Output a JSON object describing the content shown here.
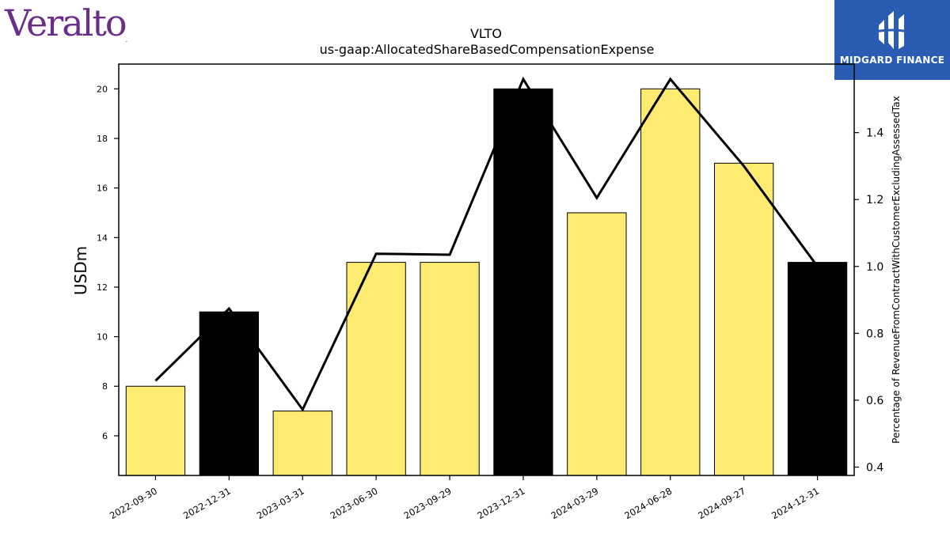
{
  "brand": {
    "logo_text": "Veralto",
    "logo_tm": "."
  },
  "publisher": {
    "name": "MIDGARD FINANCE"
  },
  "chart_data": {
    "type": "bar",
    "title": "VLTO",
    "subtitle": "us-gaap:AllocatedShareBasedCompensationExpense",
    "ylabel": "USDm",
    "y2label": "Percentage of RevenueFromContractWithCustomerExcludingAssessedTax",
    "categories": [
      "2022-09-30",
      "2022-12-31",
      "2023-03-31",
      "2023-06-30",
      "2023-09-29",
      "2023-12-31",
      "2024-03-29",
      "2024-06-28",
      "2024-09-27",
      "2024-12-31"
    ],
    "values": [
      8,
      11,
      7,
      13,
      13,
      20,
      15,
      20,
      17,
      13
    ],
    "bar_colors": [
      "#fdeb72",
      "#000000",
      "#fdeb72",
      "#fdeb72",
      "#fdeb72",
      "#000000",
      "#fdeb72",
      "#fdeb72",
      "#fdeb72",
      "#000000"
    ],
    "ylim": [
      4.4,
      21.0
    ],
    "yticks": [
      6,
      8,
      10,
      12,
      14,
      16,
      18,
      20
    ],
    "line_series": {
      "axis": "right",
      "values": [
        0.658,
        0.874,
        0.572,
        1.038,
        1.035,
        1.56,
        1.205,
        1.56,
        1.3,
        1.0
      ]
    },
    "y2lim": [
      0.375,
      1.605
    ],
    "y2ticks": [
      "0.4",
      "0.6",
      "0.8",
      "1.0",
      "1.2",
      "1.4"
    ],
    "grid": false,
    "colors": {
      "bar_light": "#fdeb72",
      "bar_dark": "#000000",
      "line": "#000000"
    }
  }
}
